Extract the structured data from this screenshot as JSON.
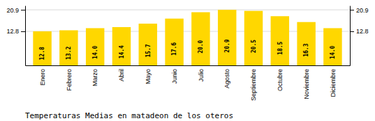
{
  "chart_data": {
    "type": "bar",
    "title": "Temperaturas Medias en matadeon de los oteros",
    "categories": [
      "Enero",
      "Febrero",
      "Marzo",
      "Abril",
      "Mayo",
      "Junio",
      "Julio",
      "Agosto",
      "Septiembre",
      "Octubre",
      "Noviembre",
      "Diciembre"
    ],
    "values": [
      12.8,
      13.2,
      14.0,
      14.4,
      15.7,
      17.6,
      20.0,
      20.9,
      20.5,
      18.5,
      16.3,
      14.0
    ],
    "value_labels": [
      "12.8",
      "13.2",
      "14.0",
      "14.4",
      "15.7",
      "17.6",
      "20.0",
      "20.9",
      "20.5",
      "18.5",
      "16.3",
      "14.0"
    ],
    "color": "#FFD700",
    "ylim": [
      0.0,
      22.5
    ],
    "yticks": [
      12.8,
      20.9
    ],
    "grid": true,
    "data_labels": true
  }
}
